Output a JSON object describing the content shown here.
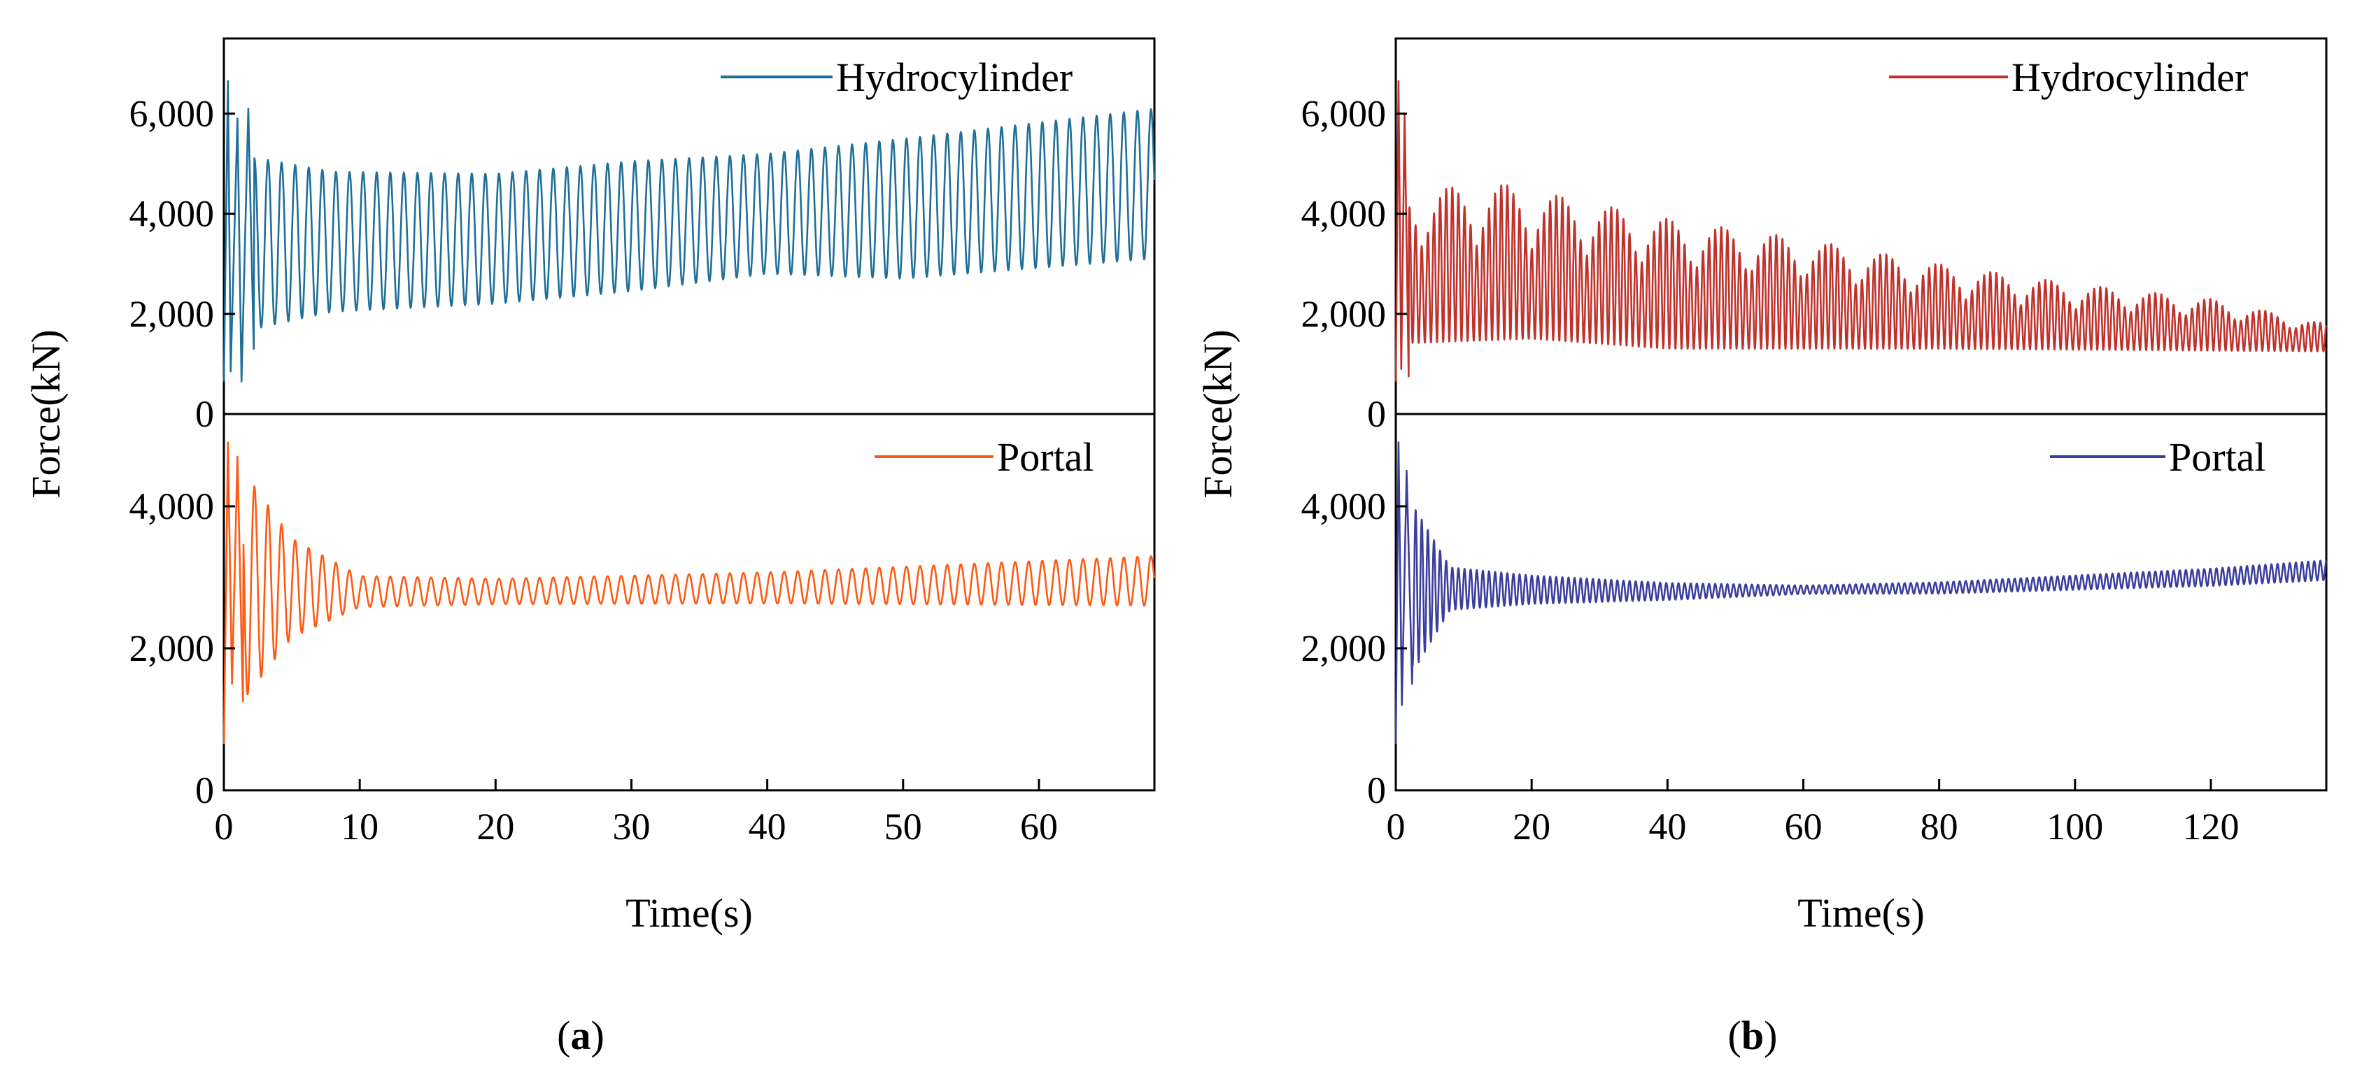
{
  "chart_data": [
    {
      "id": "a",
      "type": "line",
      "panel_label": "(a)",
      "panel_letter": "a",
      "xlabel": "Time(s)",
      "ylabel": "Force(kN)",
      "xlim": [
        0,
        68.5
      ],
      "x_ticks": [
        0,
        10,
        20,
        30,
        40,
        50,
        60
      ],
      "x_tick_labels": [
        "0",
        "10",
        "20",
        "30",
        "40",
        "50",
        "60"
      ],
      "subplots": [
        {
          "id": "top",
          "ylim": [
            0,
            7500
          ],
          "y_ticks": [
            0,
            2000,
            4000,
            6000
          ],
          "y_tick_labels": [
            "0",
            "2,000",
            "4,000",
            "6,000"
          ],
          "legend_position": "top-right",
          "series": {
            "name": "Hydrocylinder",
            "color": "#1f6f99",
            "waveform": "oscillation",
            "period": 1.0,
            "start_value": 650,
            "initial_spikes": [
              [
                0.3,
                6650
              ],
              [
                0.5,
                850
              ],
              [
                1.0,
                5900
              ],
              [
                1.3,
                650
              ],
              [
                1.8,
                6100
              ],
              [
                2.2,
                1300
              ]
            ],
            "mean": [
              [
                0,
                3400
              ],
              [
                20,
                3500
              ],
              [
                40,
                4000
              ],
              [
                50,
                4100
              ],
              [
                68.5,
                4600
              ]
            ],
            "amplitude": [
              [
                2.5,
                1700
              ],
              [
                8,
                1400
              ],
              [
                20,
                1300
              ],
              [
                30,
                1300
              ],
              [
                40,
                1200
              ],
              [
                50,
                1400
              ],
              [
                68.5,
                1500
              ]
            ]
          }
        },
        {
          "id": "bottom",
          "ylim": [
            0,
            5300
          ],
          "y_ticks": [
            0,
            2000,
            4000
          ],
          "y_tick_labels": [
            "0",
            "2,000",
            "4,000"
          ],
          "legend_position": "top-right",
          "series": {
            "name": "Portal",
            "color": "#ff5a12",
            "waveform": "oscillation",
            "period": 1.0,
            "start_value": 650,
            "initial_spikes": [
              [
                0.3,
                4900
              ],
              [
                0.6,
                1500
              ],
              [
                1.0,
                4700
              ],
              [
                1.4,
                1250
              ]
            ],
            "mean": [
              [
                0,
                2900
              ],
              [
                10,
                2800
              ],
              [
                20,
                2800
              ],
              [
                40,
                2850
              ],
              [
                68.5,
                2950
              ]
            ],
            "amplitude": [
              [
                1.5,
                1600
              ],
              [
                5,
                700
              ],
              [
                10,
                220
              ],
              [
                20,
                180
              ],
              [
                40,
                220
              ],
              [
                68.5,
                350
              ]
            ]
          }
        }
      ]
    },
    {
      "id": "b",
      "type": "line",
      "panel_label": "(b)",
      "panel_letter": "b",
      "xlabel": "Time(s)",
      "ylabel": "Force(kN)",
      "xlim": [
        0,
        137
      ],
      "x_ticks": [
        0,
        20,
        40,
        60,
        80,
        100,
        120
      ],
      "x_tick_labels": [
        "0",
        "20",
        "40",
        "60",
        "80",
        "100",
        "120"
      ],
      "subplots": [
        {
          "id": "top",
          "ylim": [
            0,
            7500
          ],
          "y_ticks": [
            0,
            2000,
            4000,
            6000
          ],
          "y_tick_labels": [
            "0",
            "2,000",
            "4,000",
            "6,000"
          ],
          "legend_position": "top-right",
          "series": {
            "name": "Hydrocylinder",
            "color": "#c0332d",
            "waveform": "decaying-beat",
            "period": 0.9,
            "start_value": 650,
            "initial_spikes": [
              [
                0.4,
                6650
              ],
              [
                0.8,
                900
              ],
              [
                1.3,
                6000
              ],
              [
                1.9,
                750
              ]
            ],
            "beat_period": 8,
            "envelope_low": [
              [
                0,
                1400
              ],
              [
                20,
                1500
              ],
              [
                40,
                1300
              ],
              [
                80,
                1300
              ],
              [
                137,
                1250
              ]
            ],
            "envelope_high": [
              [
                3,
                4500
              ],
              [
                16,
                4600
              ],
              [
                40,
                3900
              ],
              [
                60,
                3500
              ],
              [
                80,
                3000
              ],
              [
                100,
                2600
              ],
              [
                120,
                2300
              ],
              [
                137,
                1800
              ]
            ]
          }
        },
        {
          "id": "bottom",
          "ylim": [
            0,
            5300
          ],
          "y_ticks": [
            0,
            2000,
            4000
          ],
          "y_tick_labels": [
            "0",
            "2,000",
            "4,000"
          ],
          "legend_position": "top-right",
          "series": {
            "name": "Portal",
            "color": "#3b3f9c",
            "waveform": "oscillation",
            "period": 0.9,
            "start_value": 650,
            "initial_spikes": [
              [
                0.4,
                4900
              ],
              [
                0.9,
                1200
              ],
              [
                1.6,
                4500
              ],
              [
                2.4,
                1500
              ]
            ],
            "mean": [
              [
                0,
                2850
              ],
              [
                40,
                2800
              ],
              [
                80,
                2850
              ],
              [
                120,
                3000
              ],
              [
                137,
                3100
              ]
            ],
            "amplitude": [
              [
                3,
                1100
              ],
              [
                8,
                300
              ],
              [
                20,
                200
              ],
              [
                40,
                120
              ],
              [
                60,
                60
              ],
              [
                80,
                80
              ],
              [
                137,
                140
              ]
            ]
          }
        }
      ]
    }
  ]
}
